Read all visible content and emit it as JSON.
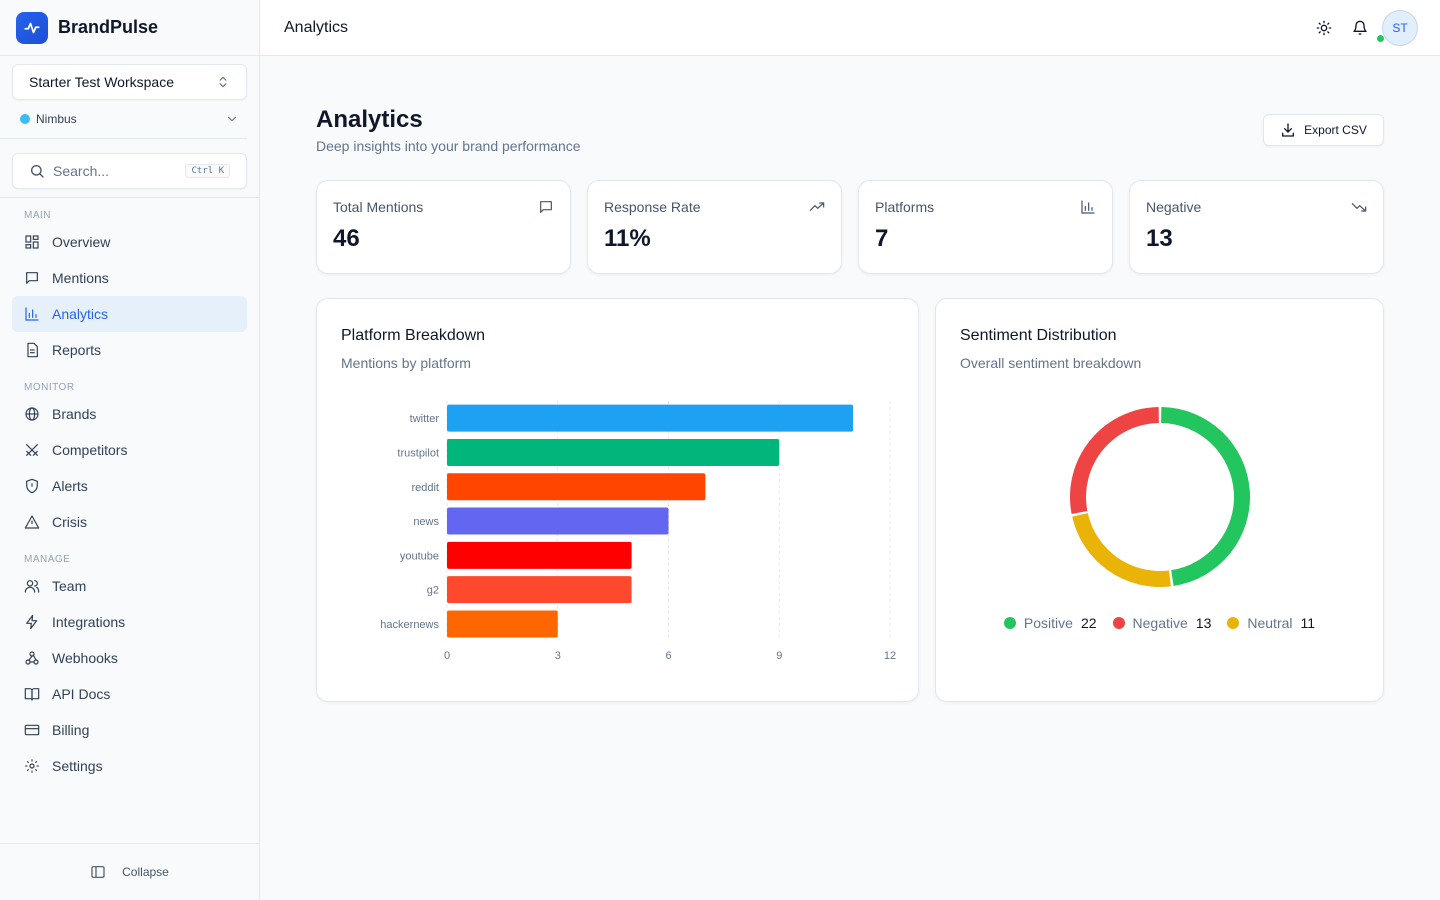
{
  "app": {
    "name": "BrandPulse"
  },
  "workspace": {
    "name": "Starter Test Workspace"
  },
  "brand_selector": {
    "name": "Nimbus"
  },
  "search": {
    "placeholder": "Search...",
    "shortcut": "Ctrl K"
  },
  "nav": {
    "sections": [
      {
        "label": "MAIN",
        "items": [
          {
            "label": "Overview",
            "icon": "grid-icon"
          },
          {
            "label": "Mentions",
            "icon": "message-icon"
          },
          {
            "label": "Analytics",
            "icon": "bar-chart-icon",
            "active": true
          },
          {
            "label": "Reports",
            "icon": "document-icon"
          }
        ]
      },
      {
        "label": "MONITOR",
        "items": [
          {
            "label": "Brands",
            "icon": "globe-icon"
          },
          {
            "label": "Competitors",
            "icon": "swords-icon"
          },
          {
            "label": "Alerts",
            "icon": "shield-icon"
          },
          {
            "label": "Crisis",
            "icon": "warning-icon"
          }
        ]
      },
      {
        "label": "MANAGE",
        "items": [
          {
            "label": "Team",
            "icon": "users-icon"
          },
          {
            "label": "Integrations",
            "icon": "lightning-icon"
          },
          {
            "label": "Webhooks",
            "icon": "webhook-icon"
          },
          {
            "label": "API Docs",
            "icon": "book-icon"
          },
          {
            "label": "Billing",
            "icon": "credit-card-icon"
          },
          {
            "label": "Settings",
            "icon": "gear-icon"
          }
        ]
      }
    ]
  },
  "sidebar_footer": {
    "collapse_label": "Collapse"
  },
  "header": {
    "title": "Analytics",
    "user_initials": "ST"
  },
  "page": {
    "title": "Analytics",
    "subtitle": "Deep insights into your brand performance",
    "export_label": "Export CSV"
  },
  "stats": [
    {
      "label": "Total Mentions",
      "value": "46",
      "icon": "message-icon"
    },
    {
      "label": "Response Rate",
      "value": "11%",
      "icon": "trending-up-icon"
    },
    {
      "label": "Platforms",
      "value": "7",
      "icon": "bar-chart-icon"
    },
    {
      "label": "Negative",
      "value": "13",
      "icon": "trending-down-icon"
    }
  ],
  "platform_panel": {
    "title": "Platform Breakdown",
    "subtitle": "Mentions by platform"
  },
  "sentiment_panel": {
    "title": "Sentiment Distribution",
    "subtitle": "Overall sentiment breakdown"
  },
  "chart_data": [
    {
      "type": "bar",
      "orientation": "horizontal",
      "categories": [
        "twitter",
        "trustpilot",
        "reddit",
        "news",
        "youtube",
        "g2",
        "hackernews"
      ],
      "values": [
        11,
        9,
        7,
        6,
        5,
        5,
        3
      ],
      "colors": [
        "#1da1f2",
        "#00b67a",
        "#ff4500",
        "#6366f1",
        "#ff0000",
        "#ff492c",
        "#ff6600"
      ],
      "xlim": [
        0,
        12
      ],
      "xticks": [
        0,
        3,
        6,
        9,
        12
      ],
      "grid": true
    },
    {
      "type": "pie",
      "donut": true,
      "labels": [
        "Positive",
        "Neutral",
        "Negative"
      ],
      "values": [
        22,
        11,
        13
      ],
      "colors": [
        "#22c55e",
        "#eab308",
        "#ef4444"
      ],
      "legend": "bottom"
    }
  ]
}
